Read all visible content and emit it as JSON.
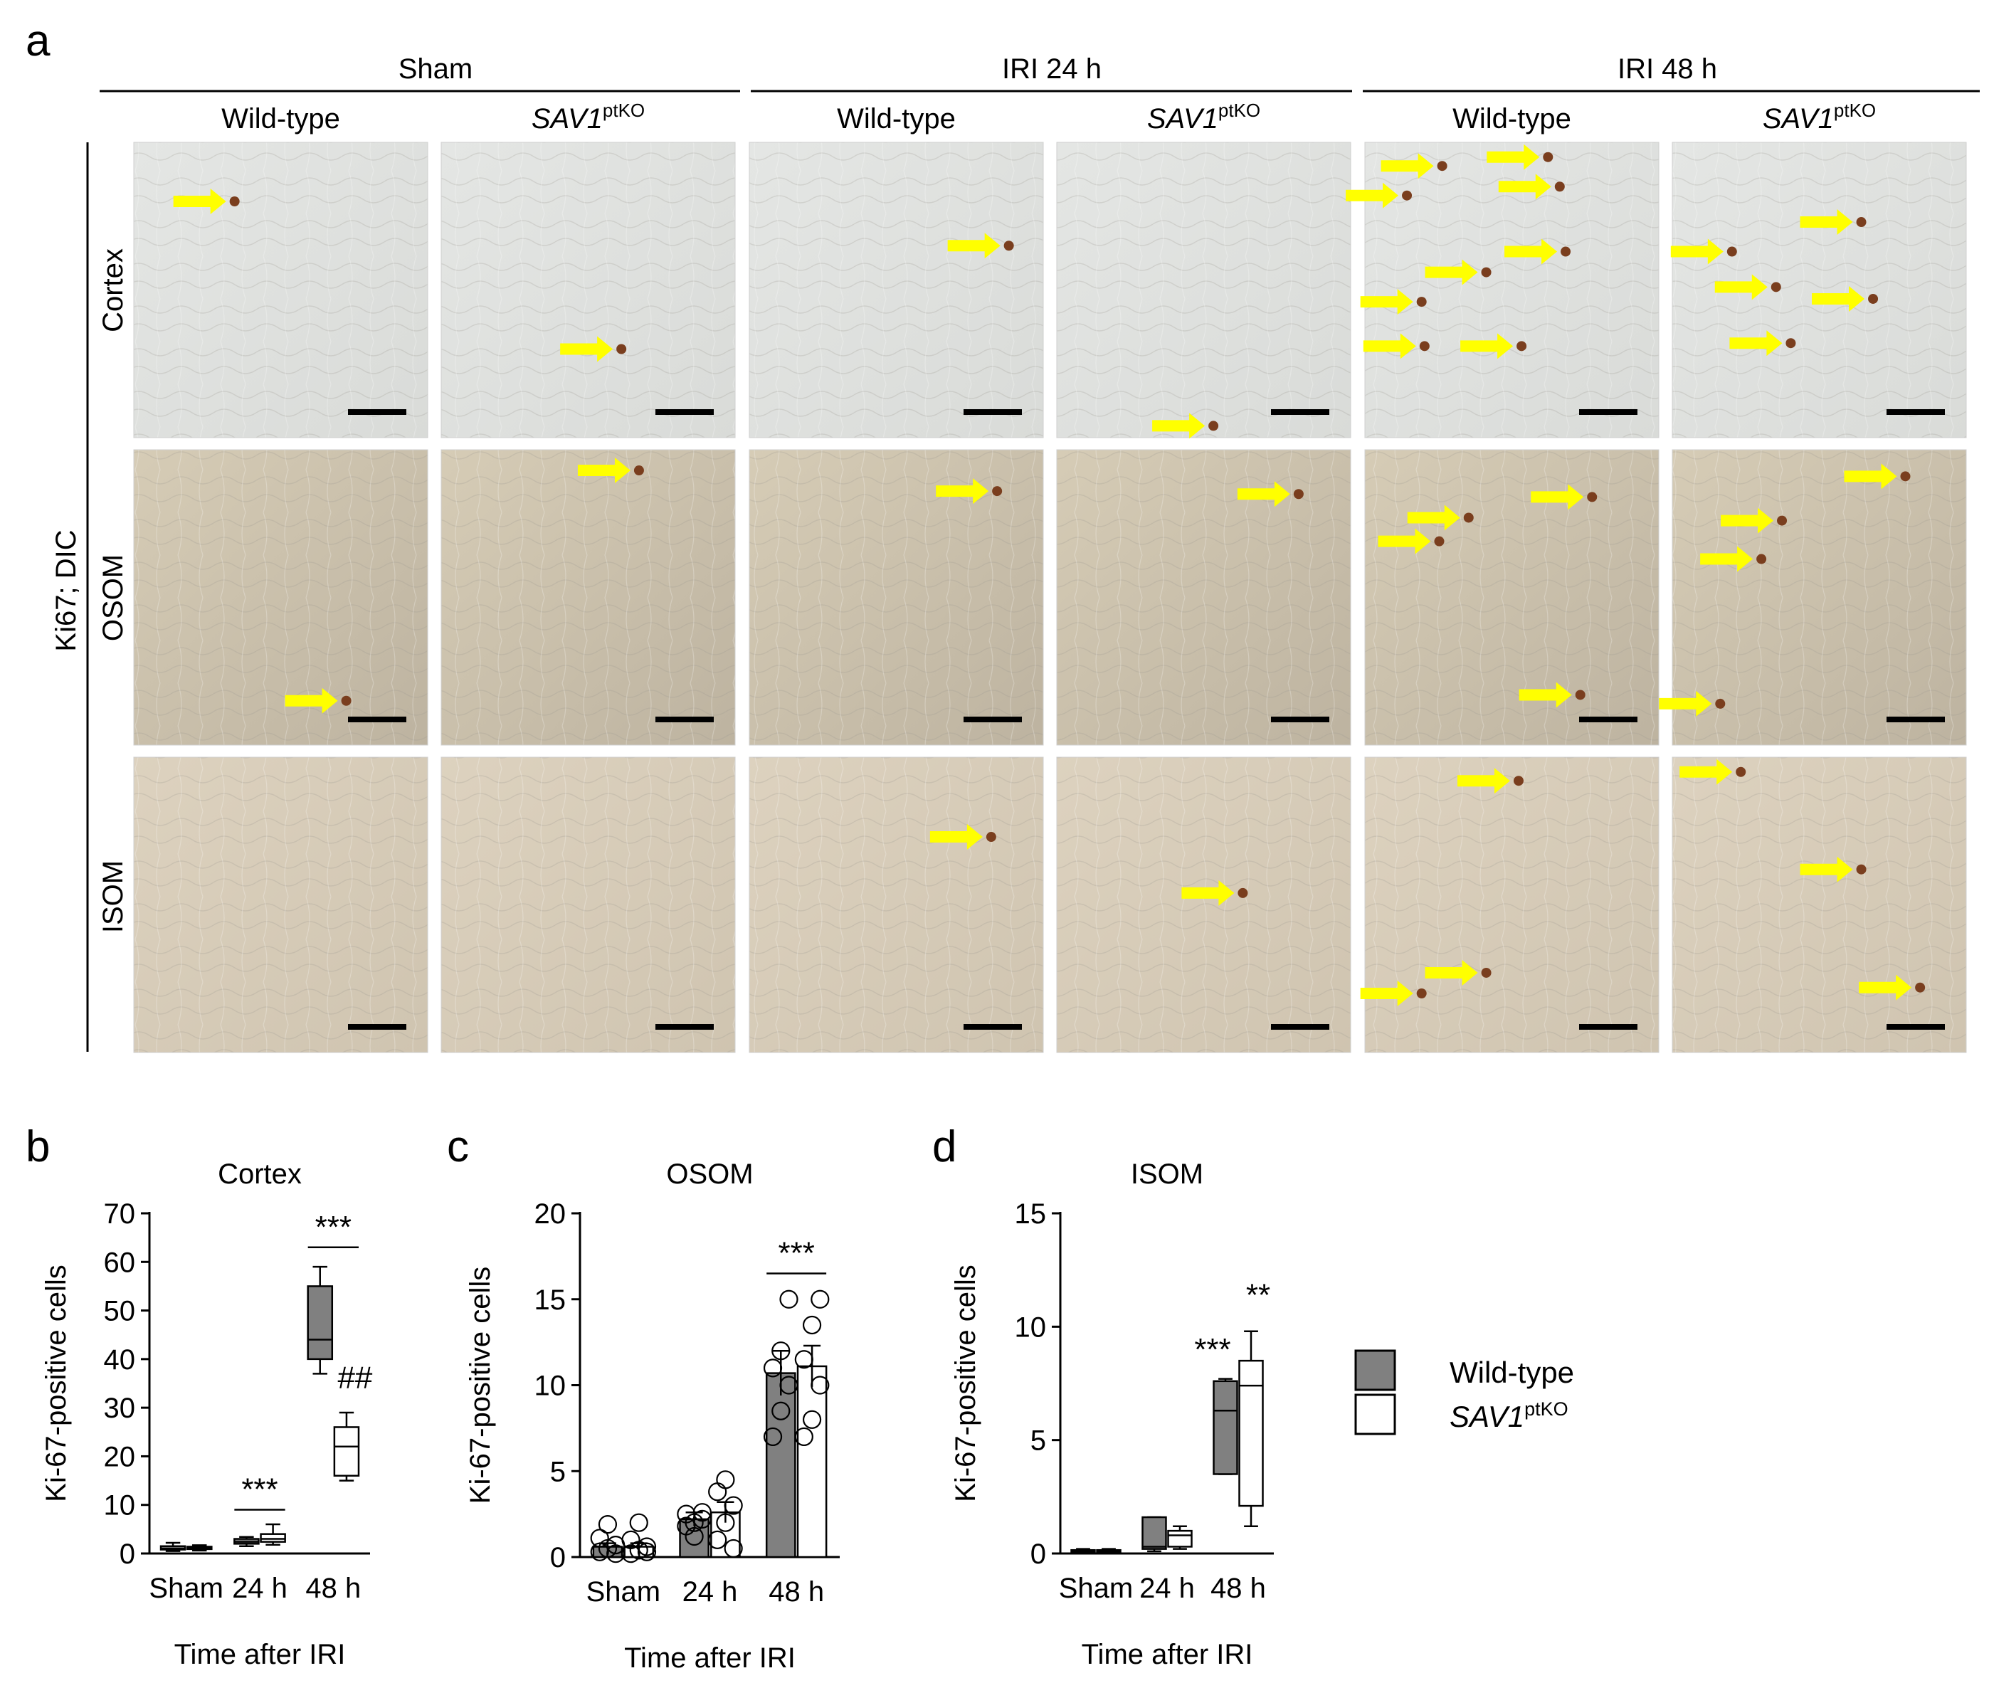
{
  "panel_a": {
    "letter": "a",
    "groups": [
      "Sham",
      "IRI 24 h",
      "IRI 48 h"
    ],
    "columns": [
      {
        "name": "Wild-type",
        "sub": ""
      },
      {
        "name": "SAV1",
        "sub": "ptKO"
      },
      {
        "name": "Wild-type",
        "sub": ""
      },
      {
        "name": "SAV1",
        "sub": "ptKO"
      },
      {
        "name": "Wild-type",
        "sub": ""
      },
      {
        "name": "SAV1",
        "sub": "ptKO"
      }
    ],
    "rows": [
      "Cortex",
      "OSOM",
      "ISOM"
    ],
    "stain_label": "Ki67; DIC",
    "arrow_color": "#ffff00",
    "scale_bar_color": "#000000"
  },
  "legend": {
    "items": [
      {
        "name": "Wild-type",
        "sub": "",
        "fill": "#808080"
      },
      {
        "name": "SAV1",
        "sub": "ptKO",
        "fill": "#ffffff"
      }
    ]
  },
  "chart_data": [
    {
      "letter": "b",
      "type": "box",
      "title": "Cortex",
      "ylabel": "Ki-67-positive cells",
      "xlabel": "Time after IRI",
      "categories": [
        "Sham",
        "24 h",
        "48 h"
      ],
      "ylim": [
        0,
        70
      ],
      "yticks": [
        0,
        10,
        20,
        30,
        40,
        50,
        60,
        70
      ],
      "series": [
        {
          "name": "Wild-type",
          "boxes": [
            {
              "min": 0.5,
              "q1": 0.8,
              "median": 1.0,
              "q3": 1.5,
              "max": 2.2
            },
            {
              "min": 1.5,
              "q1": 2.0,
              "median": 2.4,
              "q3": 3.0,
              "max": 3.4
            },
            {
              "min": 37,
              "q1": 40,
              "median": 44,
              "q3": 55,
              "max": 59
            }
          ]
        },
        {
          "name": "SAV1ptKO",
          "boxes": [
            {
              "min": 0.6,
              "q1": 0.9,
              "median": 1.1,
              "q3": 1.4,
              "max": 1.7
            },
            {
              "min": 1.8,
              "q1": 2.4,
              "median": 3.0,
              "q3": 4.0,
              "max": 6.0
            },
            {
              "min": 15,
              "q1": 16,
              "median": 22,
              "q3": 26,
              "max": 29
            }
          ]
        }
      ],
      "annotations": [
        {
          "text": "***",
          "category": 1,
          "y": 9
        },
        {
          "text": "***",
          "category": 2,
          "y": 63
        },
        {
          "text": "##",
          "category": 2,
          "y": 32
        }
      ]
    },
    {
      "letter": "c",
      "type": "bar",
      "title": "OSOM",
      "ylabel": "Ki-67-positive cells",
      "xlabel": "Time after IRI",
      "categories": [
        "Sham",
        "24 h",
        "48 h"
      ],
      "ylim": [
        0,
        20
      ],
      "yticks": [
        0,
        5,
        10,
        15,
        20
      ],
      "series": [
        {
          "name": "Wild-type",
          "values": [
            0.6,
            2.2,
            10.7
          ],
          "errors": [
            0.2,
            0.4,
            1.3
          ],
          "points": [
            [
              0.3,
              0.5,
              0.7,
              1.1,
              1.9,
              0.2
            ],
            [
              1.8,
              2.0,
              2.2,
              2.5,
              1.2,
              2.6
            ],
            [
              7.0,
              8.5,
              10.0,
              11.0,
              12.0,
              15.0
            ]
          ]
        },
        {
          "name": "SAV1ptKO",
          "values": [
            0.6,
            2.6,
            11.1
          ],
          "errors": [
            0.2,
            0.6,
            1.2
          ],
          "points": [
            [
              0.2,
              0.4,
              0.6,
              1.0,
              2.0,
              0.3
            ],
            [
              1.0,
              2.0,
              3.0,
              3.8,
              4.5,
              0.5
            ],
            [
              7.0,
              8.0,
              10.0,
              11.5,
              13.5,
              15.0
            ]
          ]
        }
      ],
      "annotations": [
        {
          "text": "***",
          "category": 2,
          "y": 16.5
        }
      ]
    },
    {
      "letter": "d",
      "type": "box",
      "title": "ISOM",
      "ylabel": "Ki-67-positive cells",
      "xlabel": "Time after IRI",
      "categories": [
        "Sham",
        "24 h",
        "48 h"
      ],
      "ylim": [
        0,
        15
      ],
      "yticks": [
        0,
        5,
        10,
        15
      ],
      "series": [
        {
          "name": "Wild-type",
          "boxes": [
            {
              "min": 0,
              "q1": 0.05,
              "median": 0.1,
              "q3": 0.15,
              "max": 0.2
            },
            {
              "min": 0.1,
              "q1": 0.2,
              "median": 0.3,
              "q3": 1.6,
              "max": 1.6
            },
            {
              "min": 3.5,
              "q1": 3.5,
              "median": 6.3,
              "q3": 7.6,
              "max": 7.7
            }
          ]
        },
        {
          "name": "SAV1ptKO",
          "boxes": [
            {
              "min": 0,
              "q1": 0.05,
              "median": 0.1,
              "q3": 0.15,
              "max": 0.2
            },
            {
              "min": 0.2,
              "q1": 0.3,
              "median": 0.8,
              "q3": 1.0,
              "max": 1.2
            },
            {
              "min": 1.2,
              "q1": 2.1,
              "median": 7.4,
              "q3": 8.5,
              "max": 9.8
            }
          ]
        }
      ],
      "annotations": [
        {
          "text": "***",
          "category": 2,
          "y": 8.1
        },
        {
          "text": "**",
          "category": 2,
          "y": 10.5
        }
      ]
    }
  ]
}
